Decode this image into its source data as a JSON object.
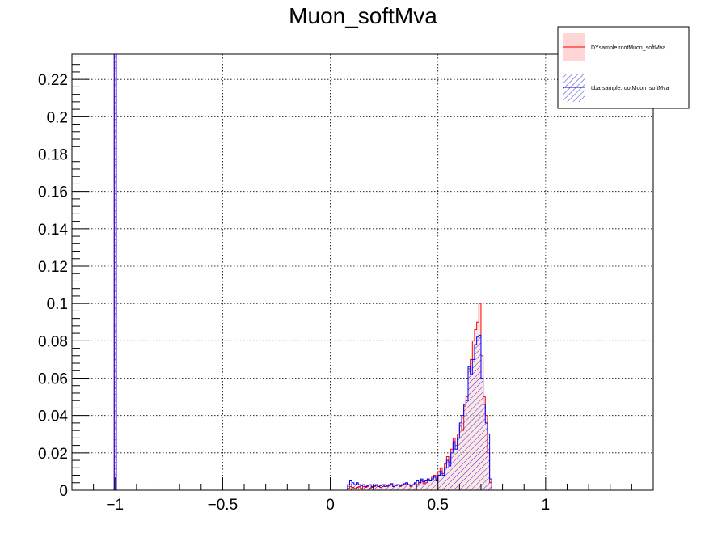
{
  "chart_data": {
    "type": "histogram",
    "title": "Muon_softMva",
    "xlabel": "",
    "ylabel": "",
    "xlim": [
      -1.2,
      1.5
    ],
    "ylim": [
      0,
      0.2335
    ],
    "grid": true,
    "legend_position": "top-right",
    "x_ticks": [
      -1,
      -0.5,
      0,
      0.5,
      1
    ],
    "x_tick_labels": [
      "−1",
      "−0.5",
      "0",
      "0.5",
      "1"
    ],
    "y_ticks": [
      0,
      0.02,
      0.04,
      0.06,
      0.08,
      0.1,
      0.12,
      0.14,
      0.16,
      0.18,
      0.2,
      0.22
    ],
    "y_tick_labels": [
      "0",
      "0.02",
      "0.04",
      "0.06",
      "0.08",
      "0.1",
      "0.12",
      "0.14",
      "0.16",
      "0.18",
      "0.2",
      "0.22"
    ],
    "bin_width": 0.01,
    "series": [
      {
        "name": "DYsample.rootMuon_softMva",
        "color": "#ff0000",
        "fill": "#ffd2d2",
        "style": "solid",
        "spike": {
          "x": -1.0,
          "value": 0.2335
        },
        "x": [
          0.08,
          0.09,
          0.1,
          0.11,
          0.12,
          0.13,
          0.14,
          0.15,
          0.16,
          0.17,
          0.18,
          0.19,
          0.2,
          0.21,
          0.22,
          0.23,
          0.24,
          0.25,
          0.26,
          0.27,
          0.28,
          0.29,
          0.3,
          0.31,
          0.32,
          0.33,
          0.34,
          0.35,
          0.36,
          0.37,
          0.38,
          0.39,
          0.4,
          0.41,
          0.42,
          0.43,
          0.44,
          0.45,
          0.46,
          0.47,
          0.48,
          0.49,
          0.5,
          0.51,
          0.52,
          0.53,
          0.54,
          0.55,
          0.56,
          0.57,
          0.58,
          0.59,
          0.6,
          0.61,
          0.62,
          0.63,
          0.64,
          0.65,
          0.66,
          0.67,
          0.68,
          0.69,
          0.7,
          0.71,
          0.72,
          0.73,
          0.74,
          0.75
        ],
        "values": [
          0.001,
          0.002,
          0.0015,
          0.001,
          0.0015,
          0.002,
          0.001,
          0.002,
          0.0015,
          0.002,
          0.001,
          0.0015,
          0.002,
          0.0025,
          0.002,
          0.0015,
          0.002,
          0.003,
          0.002,
          0.0025,
          0.003,
          0.002,
          0.0025,
          0.003,
          0.002,
          0.0025,
          0.003,
          0.0035,
          0.003,
          0.002,
          0.003,
          0.0035,
          0.003,
          0.004,
          0.005,
          0.0035,
          0.004,
          0.006,
          0.005,
          0.007,
          0.008,
          0.006,
          0.01,
          0.012,
          0.009,
          0.014,
          0.018,
          0.015,
          0.022,
          0.028,
          0.024,
          0.03,
          0.035,
          0.032,
          0.045,
          0.05,
          0.065,
          0.07,
          0.08,
          0.086,
          0.09,
          0.1,
          0.072,
          0.05,
          0.04,
          0.02,
          0.004,
          0.0
        ]
      },
      {
        "name": "ttbarsample.rootMuon_softMva",
        "color": "#0000ff",
        "fill": "#7777ee",
        "style": "hatched",
        "spike": {
          "x": -1.0,
          "value": 0.2335
        },
        "x": [
          0.08,
          0.09,
          0.1,
          0.11,
          0.12,
          0.13,
          0.14,
          0.15,
          0.16,
          0.17,
          0.18,
          0.19,
          0.2,
          0.21,
          0.22,
          0.23,
          0.24,
          0.25,
          0.26,
          0.27,
          0.28,
          0.29,
          0.3,
          0.31,
          0.32,
          0.33,
          0.34,
          0.35,
          0.36,
          0.37,
          0.38,
          0.39,
          0.4,
          0.41,
          0.42,
          0.43,
          0.44,
          0.45,
          0.46,
          0.47,
          0.48,
          0.49,
          0.5,
          0.51,
          0.52,
          0.53,
          0.54,
          0.55,
          0.56,
          0.57,
          0.58,
          0.59,
          0.6,
          0.61,
          0.62,
          0.63,
          0.64,
          0.65,
          0.66,
          0.67,
          0.68,
          0.69,
          0.7,
          0.71,
          0.72,
          0.73,
          0.74,
          0.75
        ],
        "values": [
          0.003,
          0.005,
          0.004,
          0.003,
          0.004,
          0.003,
          0.0025,
          0.003,
          0.002,
          0.0025,
          0.003,
          0.002,
          0.0025,
          0.003,
          0.002,
          0.0025,
          0.003,
          0.002,
          0.0025,
          0.003,
          0.0035,
          0.002,
          0.0025,
          0.003,
          0.0025,
          0.003,
          0.0035,
          0.004,
          0.003,
          0.0025,
          0.003,
          0.004,
          0.005,
          0.004,
          0.006,
          0.0045,
          0.005,
          0.006,
          0.005,
          0.006,
          0.007,
          0.005,
          0.008,
          0.01,
          0.008,
          0.012,
          0.016,
          0.013,
          0.02,
          0.026,
          0.022,
          0.028,
          0.036,
          0.04,
          0.046,
          0.048,
          0.066,
          0.062,
          0.07,
          0.078,
          0.082,
          0.083,
          0.06,
          0.046,
          0.036,
          0.03,
          0.006,
          0.0
        ]
      }
    ]
  }
}
